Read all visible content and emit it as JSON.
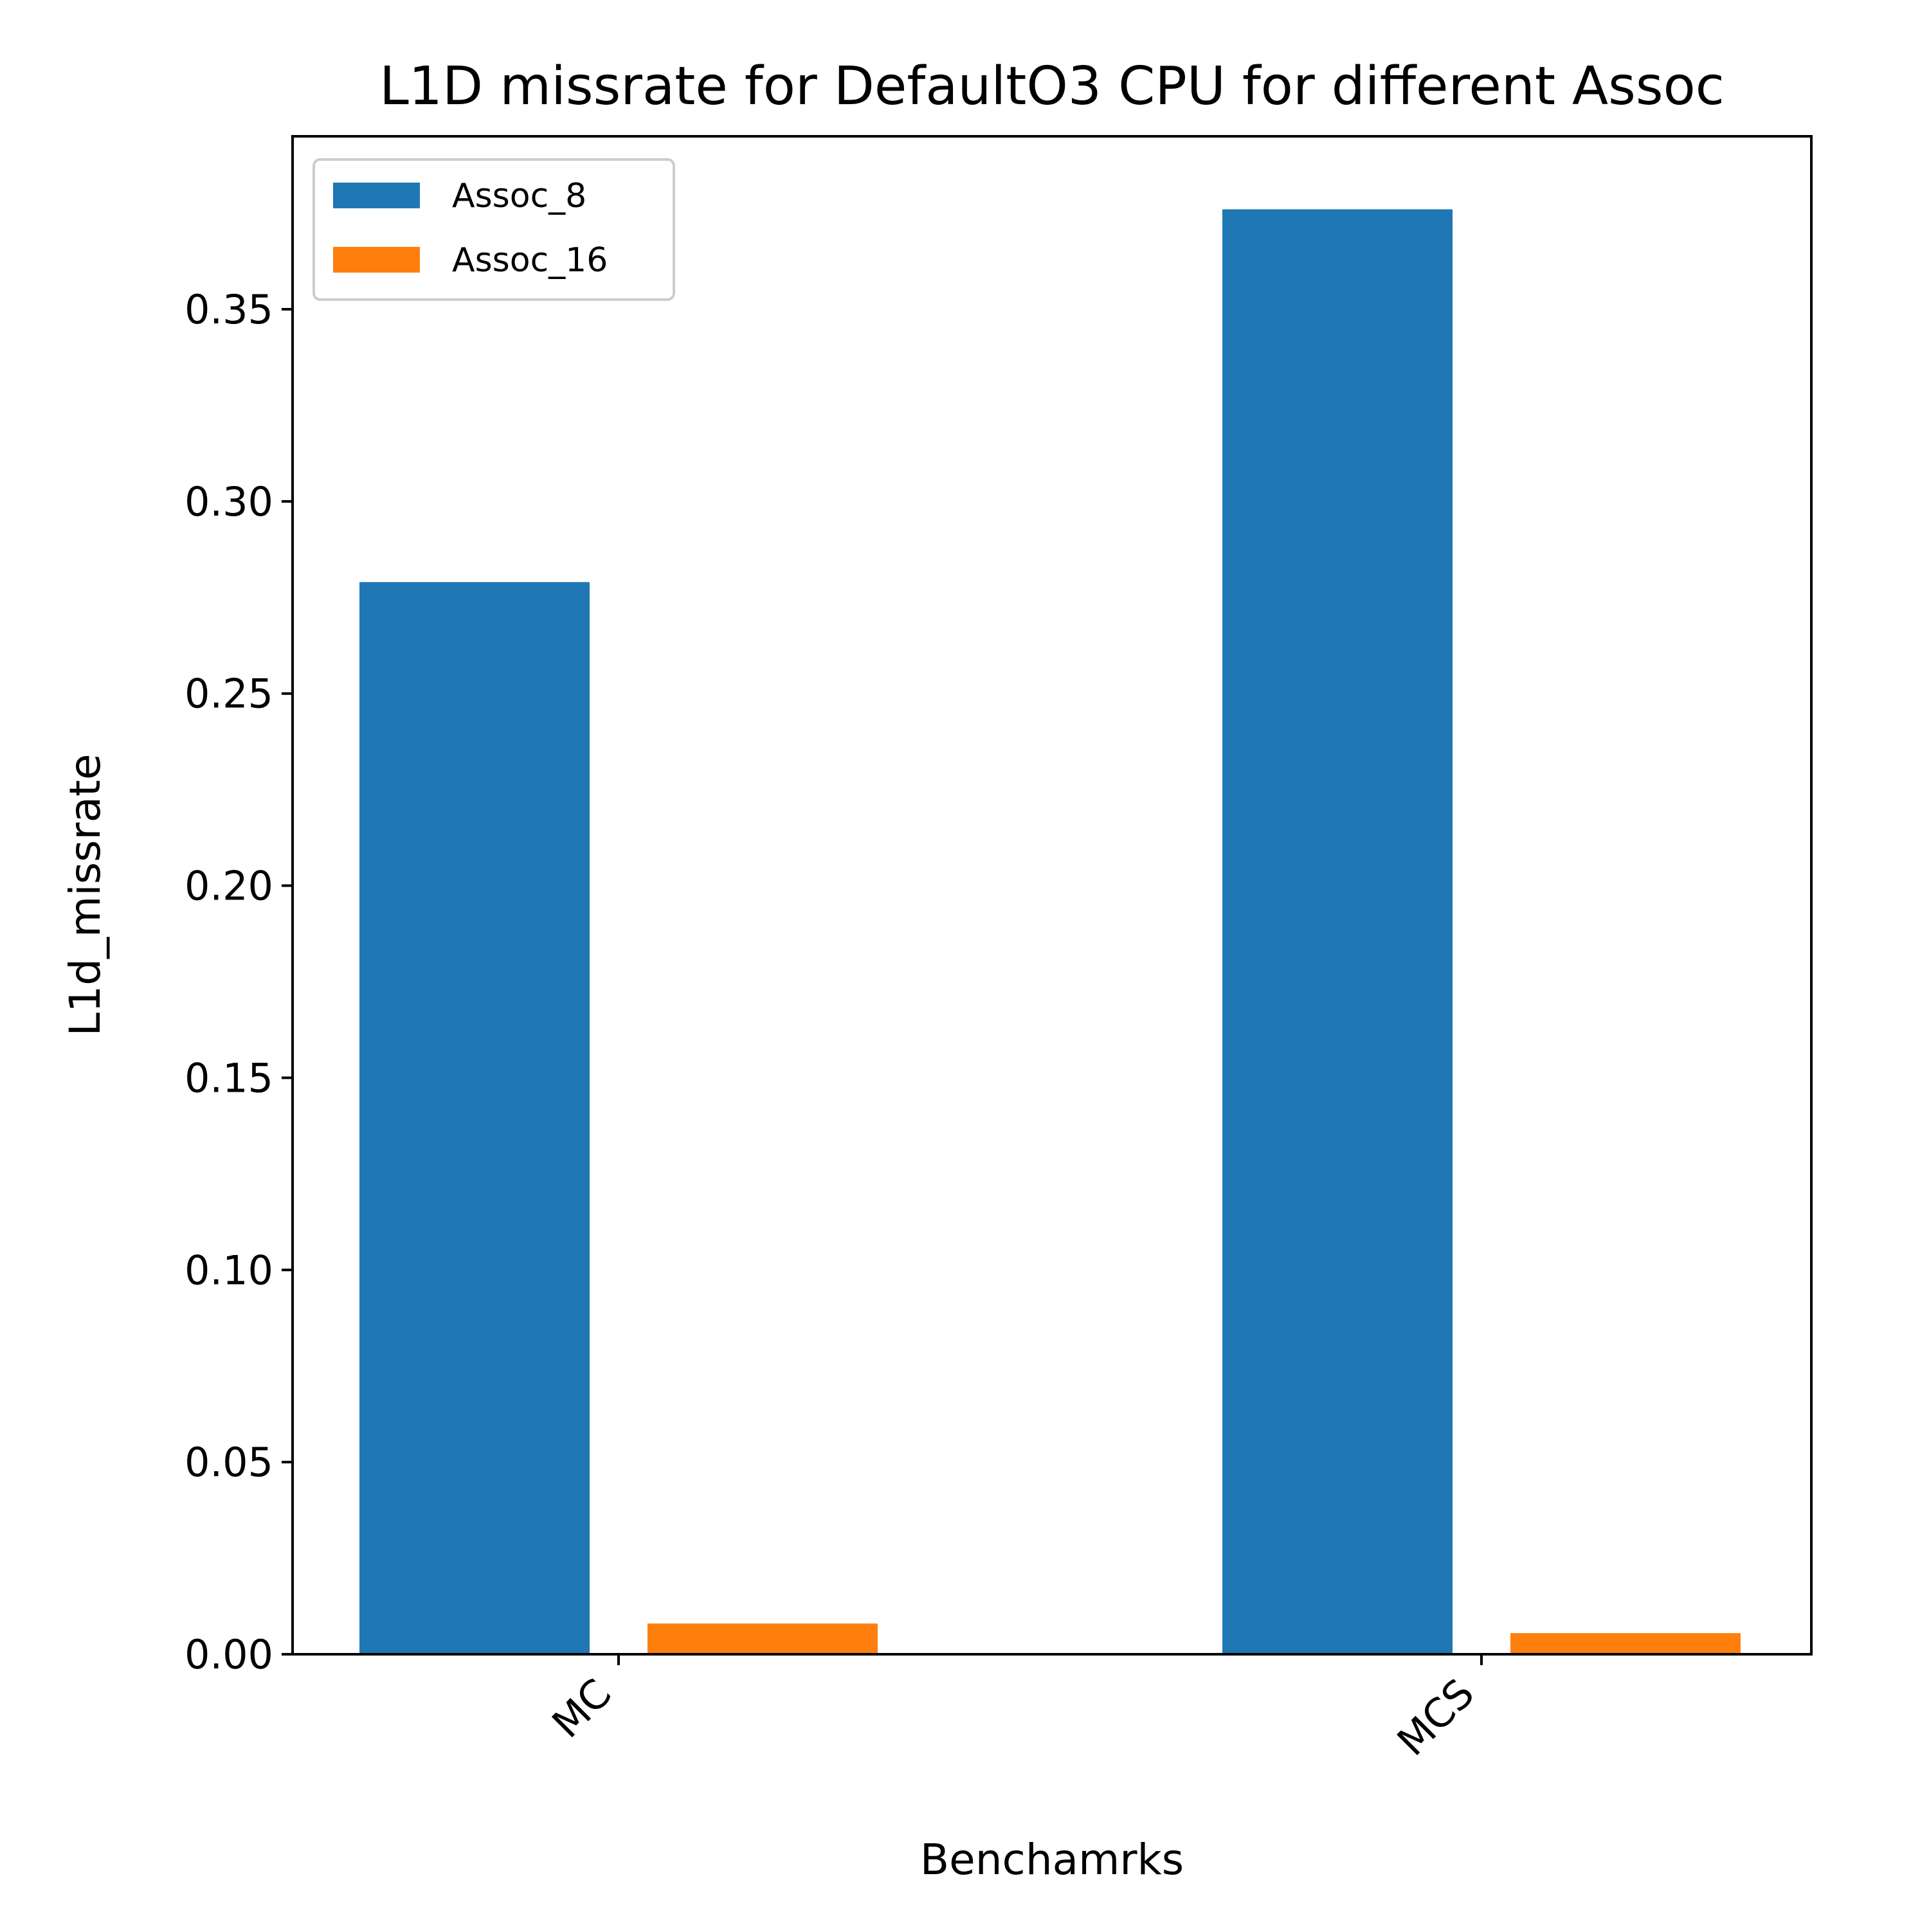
{
  "chart_data": {
    "type": "bar",
    "title": "L1D missrate for DefaultO3 CPU for different Assoc",
    "xlabel": "Benchamrks",
    "ylabel": "L1d_missrate",
    "categories": [
      "MC",
      "MCS"
    ],
    "series": [
      {
        "name": "Assoc_8",
        "color": "#1f77b4",
        "values": [
          0.279,
          0.376
        ]
      },
      {
        "name": "Assoc_16",
        "color": "#ff7f0e",
        "values": [
          0.008,
          0.0055
        ]
      }
    ],
    "ylim": [
      0,
      0.395
    ],
    "yticks": [
      "0.00",
      "0.05",
      "0.10",
      "0.15",
      "0.20",
      "0.25",
      "0.30",
      "0.35"
    ],
    "ytick_values": [
      0,
      0.05,
      0.1,
      0.15,
      0.2,
      0.25,
      0.3,
      0.35
    ],
    "grid": false,
    "legend_position": "top-left"
  }
}
